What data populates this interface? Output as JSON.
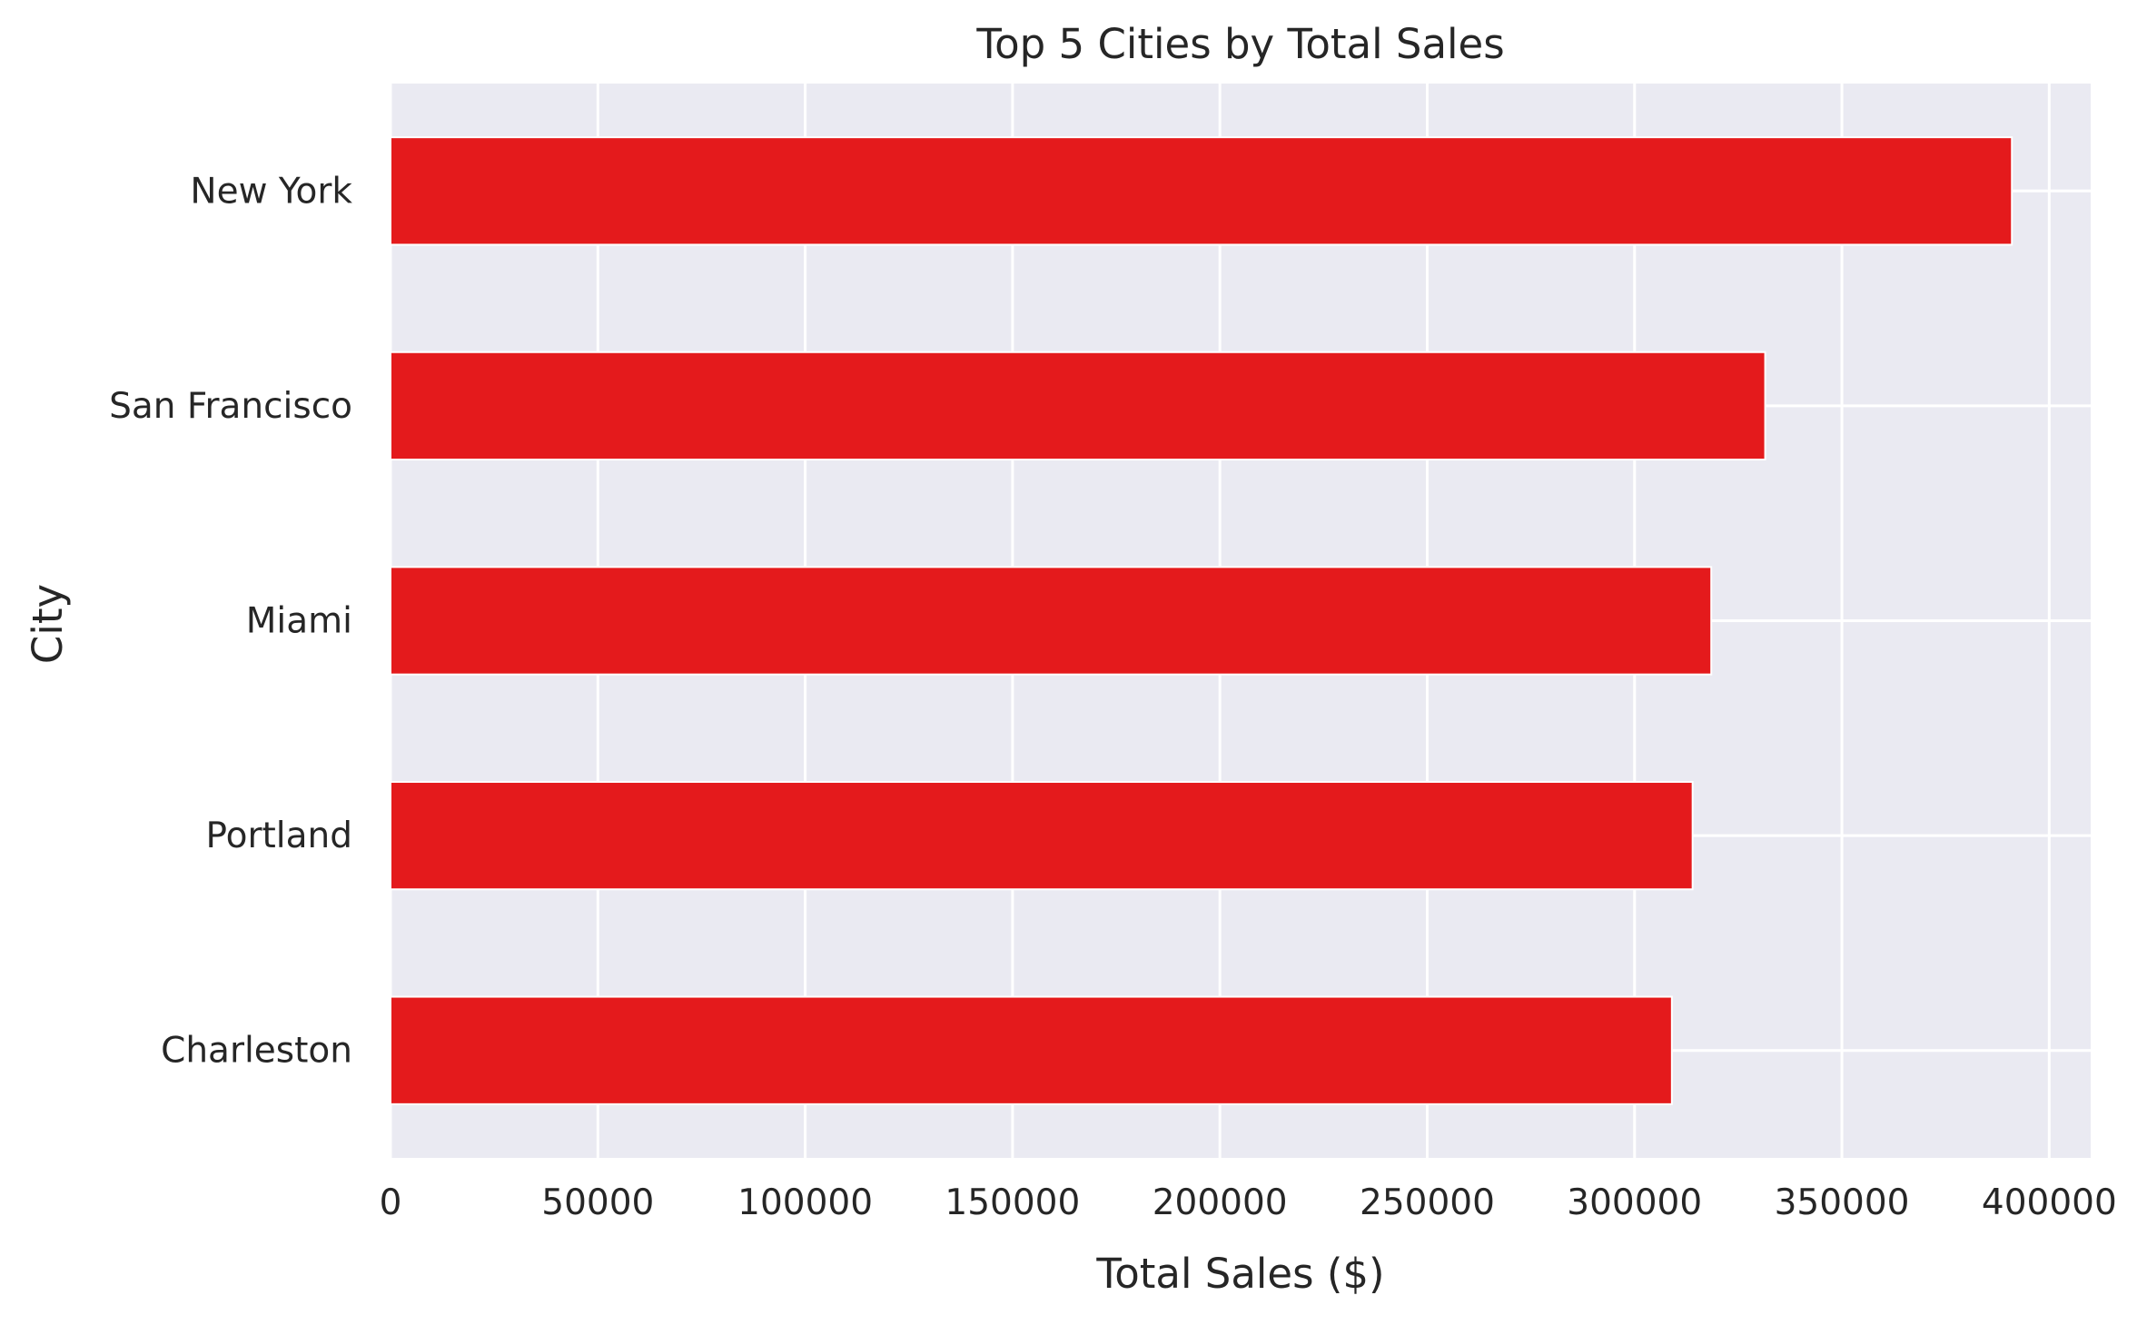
{
  "chart_data": {
    "type": "bar",
    "orientation": "horizontal",
    "title": "Top 5 Cities by Total Sales",
    "xlabel": "Total Sales ($)",
    "ylabel": "City",
    "categories": [
      "New York",
      "San Francisco",
      "Miami",
      "Portland",
      "Charleston"
    ],
    "values": [
      391000,
      331500,
      318500,
      314000,
      309000
    ],
    "xlim": [
      0,
      410000
    ],
    "xticks": [
      0,
      50000,
      100000,
      150000,
      200000,
      250000,
      300000,
      350000,
      400000
    ],
    "xtick_labels": [
      "0",
      "50000",
      "100000",
      "150000",
      "200000",
      "250000",
      "300000",
      "350000",
      "400000"
    ],
    "grid": true,
    "legend": "none",
    "colors": {
      "bar": "#e41a1c",
      "plot_background": "#eaeaf2",
      "grid": "#ffffff",
      "text": "#262626"
    }
  }
}
